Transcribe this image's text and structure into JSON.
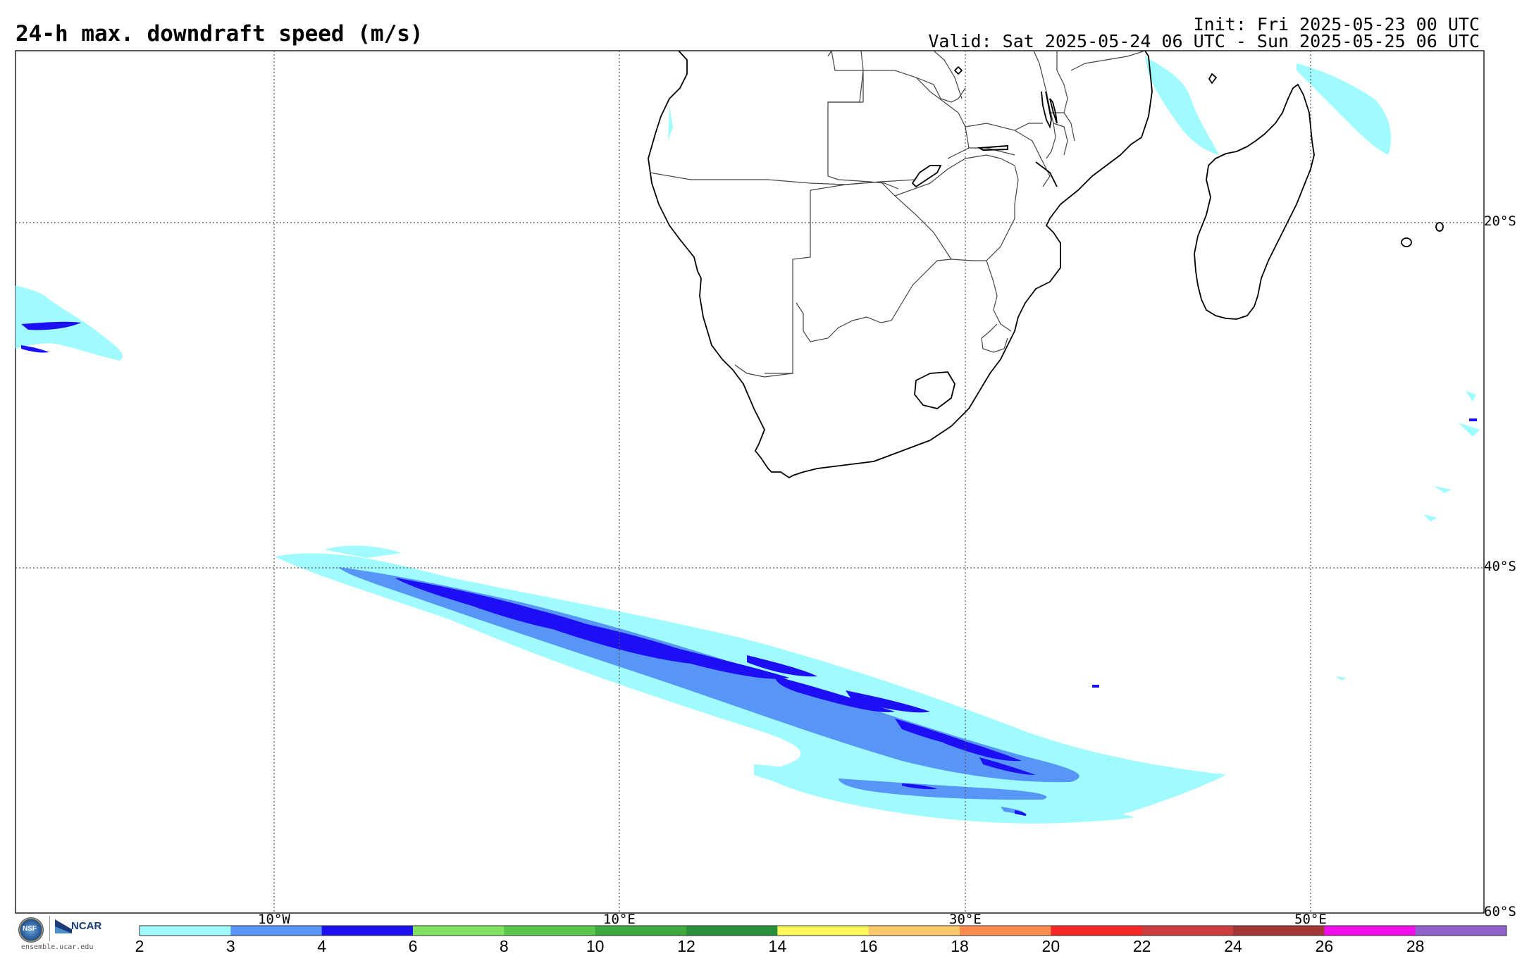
{
  "title": "24-h max. downdraft speed (m/s)",
  "init_text": "Init: Fri 2025-05-23 00 UTC",
  "valid_text": "Valid: Sat 2025-05-24 06 UTC - Sun 2025-05-25 06 UTC",
  "lon_labels": [
    "10°W",
    "10°E",
    "30°E",
    "50°E"
  ],
  "lat_labels": [
    "20°S",
    "40°S",
    "60°S"
  ],
  "colorbar": {
    "colors": [
      "#a0fbff",
      "#5796f6",
      "#1d0ff4",
      "#80e05f",
      "#57c84b",
      "#3daa40",
      "#27903a",
      "#fbf85a",
      "#fcc86a",
      "#fb8c4d",
      "#f52625",
      "#cc3e3d",
      "#a23535",
      "#ef0ee8",
      "#9060cc"
    ],
    "tick_labels": [
      "2",
      "3",
      "4",
      "6",
      "8",
      "10",
      "12",
      "14",
      "16",
      "18",
      "20",
      "22",
      "24",
      "26",
      "28"
    ]
  },
  "logos": {
    "nsf_text": "NSF",
    "ncar_text": "NCAR",
    "website": "ensemble.ucar.edu"
  }
}
